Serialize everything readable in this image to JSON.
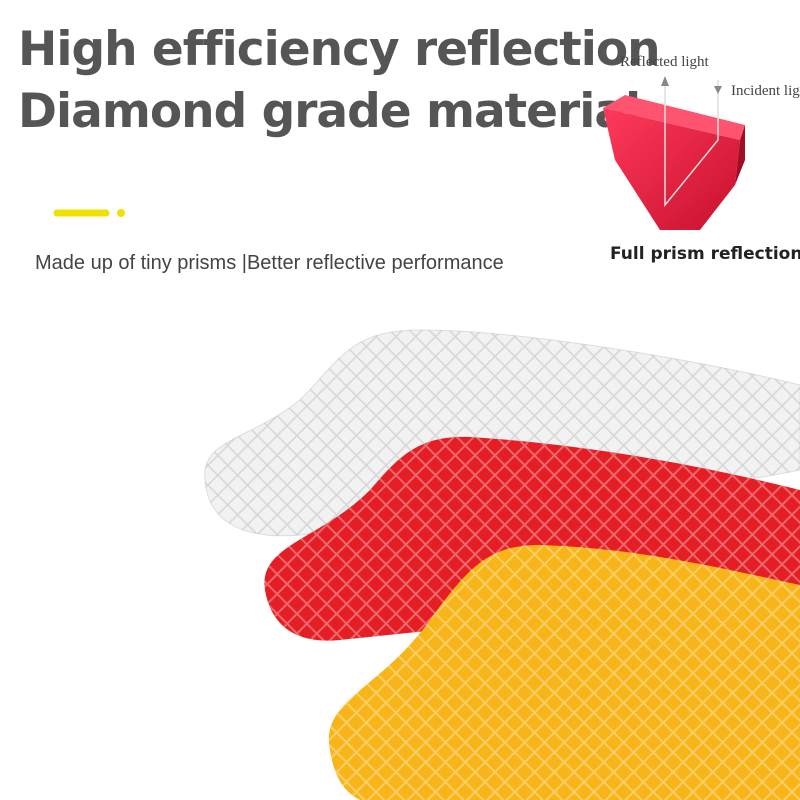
{
  "header": {
    "title_line1": "High efficiency reflection",
    "title_line2": "Diamond grade material",
    "subtitle": "Made up of tiny prisms |Better reflective performance"
  },
  "diagram": {
    "reflected_label": "Reflected light",
    "incident_label": "Incident ligh",
    "caption": "Full prism reflection"
  }
}
